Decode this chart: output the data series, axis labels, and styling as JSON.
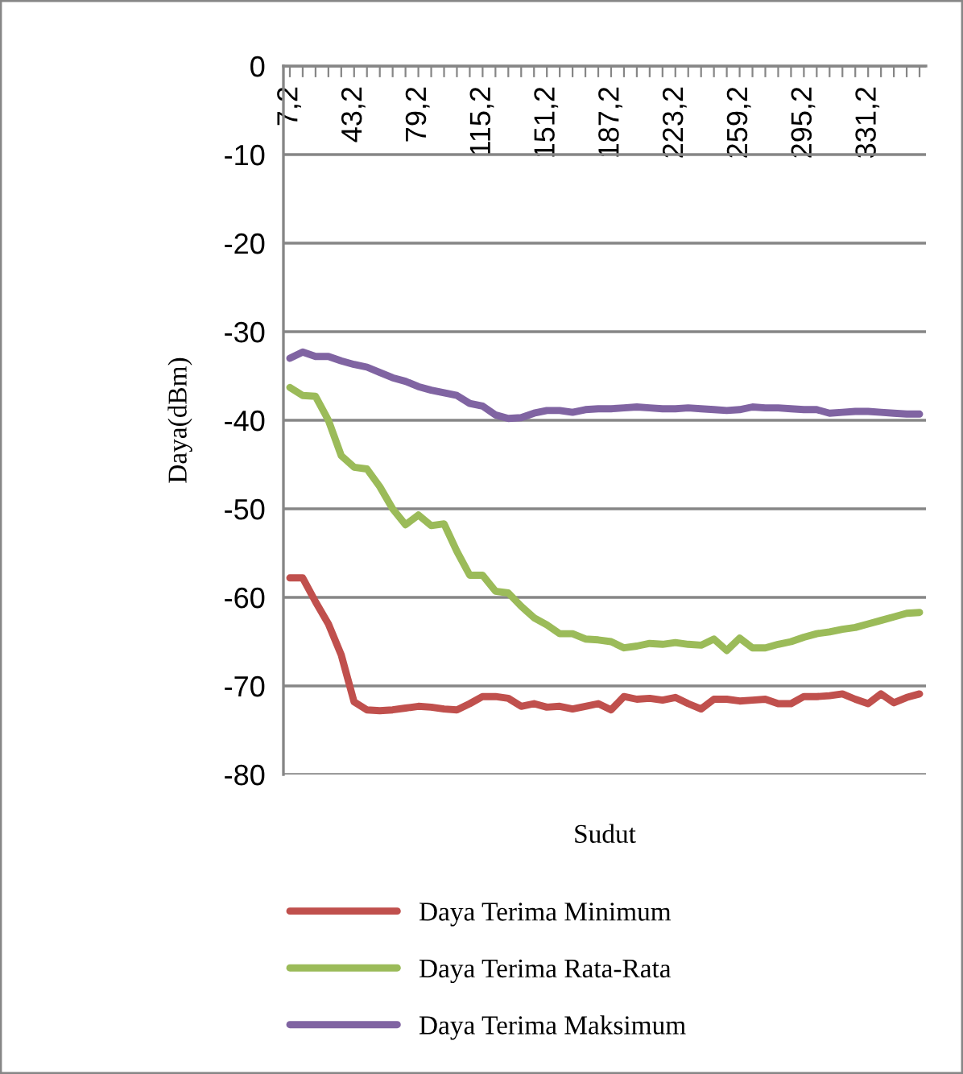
{
  "chart_data": {
    "type": "line",
    "xlabel": "Sudut",
    "ylabel": "Daya(dBm)",
    "categories": [
      "7,2",
      null,
      null,
      null,
      null,
      "43,2",
      null,
      null,
      null,
      null,
      "79,2",
      null,
      null,
      null,
      null,
      "115,2",
      null,
      null,
      null,
      null,
      "151,2",
      null,
      null,
      null,
      null,
      "187,2",
      null,
      null,
      null,
      null,
      "223,2",
      null,
      null,
      null,
      null,
      "259,2",
      null,
      null,
      null,
      null,
      "295,2",
      null,
      null,
      null,
      null,
      "331,2",
      null,
      null,
      null,
      null
    ],
    "series": [
      {
        "name": "Daya Terima Minimum",
        "color": "#c0504d",
        "values": [
          -57.8,
          -57.8,
          -60.5,
          -63,
          -66.5,
          -71.8,
          -72.7,
          -72.8,
          -72.7,
          -72.5,
          -72.3,
          -72.4,
          -72.6,
          -72.7,
          -72.0,
          -71.2,
          -71.2,
          -71.4,
          -72.3,
          -72.0,
          -72.4,
          -72.3,
          -72.6,
          -72.3,
          -72.0,
          -72.7,
          -71.2,
          -71.5,
          -71.4,
          -71.6,
          -71.3,
          -72.0,
          -72.6,
          -71.5,
          -71.5,
          -71.7,
          -71.6,
          -71.5,
          -72.0,
          -72.0,
          -71.2,
          -71.2,
          -71.1,
          -70.9,
          -71.5,
          -72.0,
          -70.9,
          -71.9,
          -71.3,
          -70.9
        ]
      },
      {
        "name": "Daya Terima Rata-Rata",
        "color": "#9bbb59",
        "values": [
          -36.3,
          -37.2,
          -37.3,
          -40,
          -44,
          -45.3,
          -45.5,
          -47.5,
          -50,
          -51.8,
          -50.7,
          -51.9,
          -51.7,
          -54.8,
          -57.5,
          -57.5,
          -59.3,
          -59.5,
          -61,
          -62.3,
          -63.1,
          -64.1,
          -64.1,
          -64.7,
          -64.8,
          -65.0,
          -65.7,
          -65.5,
          -65.2,
          -65.3,
          -65.1,
          -65.3,
          -65.4,
          -64.7,
          -66.0,
          -64.6,
          -65.7,
          -65.7,
          -65.3,
          -65.0,
          -64.5,
          -64.1,
          -63.9,
          -63.6,
          -63.4,
          -63.0,
          -62.6,
          -62.2,
          -61.8,
          -61.7
        ]
      },
      {
        "name": "Daya Terima Maksimum",
        "color": "#8064a2",
        "values": [
          -33,
          -32.3,
          -32.8,
          -32.8,
          -33.3,
          -33.7,
          -34,
          -34.6,
          -35.2,
          -35.6,
          -36.2,
          -36.6,
          -36.9,
          -37.2,
          -38.1,
          -38.4,
          -39.4,
          -39.8,
          -39.7,
          -39.2,
          -38.9,
          -38.9,
          -39.1,
          -38.8,
          -38.7,
          -38.7,
          -38.6,
          -38.5,
          -38.6,
          -38.7,
          -38.7,
          -38.6,
          -38.7,
          -38.8,
          -38.9,
          -38.8,
          -38.5,
          -38.6,
          -38.6,
          -38.7,
          -38.8,
          -38.8,
          -39.2,
          -39.1,
          -39,
          -39,
          -39.1,
          -39.2,
          -39.3,
          -39.3
        ]
      }
    ],
    "ylim": [
      -80,
      0
    ],
    "yticks": [
      0,
      -10,
      -20,
      -30,
      -40,
      -50,
      -60,
      -70,
      -80
    ],
    "grid": "y",
    "legend": "bottom",
    "marker": "none",
    "line_style": "solid"
  }
}
